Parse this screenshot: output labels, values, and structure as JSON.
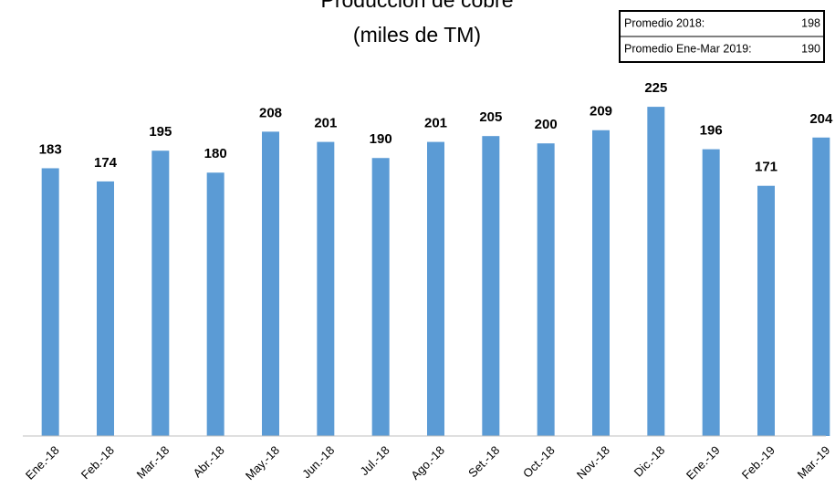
{
  "chart_data": {
    "type": "bar",
    "title": "Producción de cobre",
    "subtitle": "(miles de TM)",
    "categories": [
      "Ene.-18",
      "Feb.-18",
      "Mar.-18",
      "Abr.-18",
      "May.-18",
      "Jun.-18",
      "Jul.-18",
      "Ago.-18",
      "Set.-18",
      "Oct.-18",
      "Nov.-18",
      "Dic.-18",
      "Ene.-19",
      "Feb.-19",
      "Mar.-19"
    ],
    "values": [
      183,
      174,
      195,
      180,
      208,
      201,
      190,
      201,
      205,
      200,
      209,
      225,
      196,
      171,
      204
    ],
    "color": "#5b9bd5",
    "ylim": [
      0,
      250
    ],
    "averages": [
      {
        "label": "Promedio 2018:",
        "value": 198
      },
      {
        "label": "Promedio Ene-Mar 2019:",
        "value": 190
      }
    ]
  }
}
